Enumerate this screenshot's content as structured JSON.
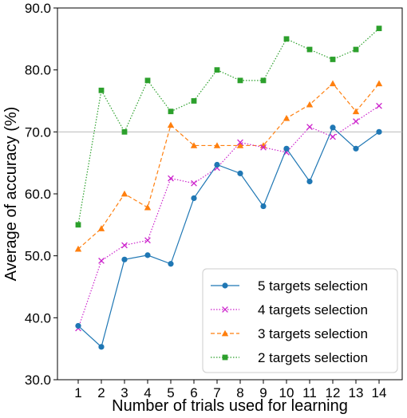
{
  "chart_data": {
    "type": "line",
    "title": "",
    "xlabel": "Number of trials used for learning",
    "ylabel": "Average of accuracy (%)",
    "x": [
      1,
      2,
      3,
      4,
      5,
      6,
      7,
      8,
      9,
      10,
      11,
      12,
      13,
      14
    ],
    "xtick_labels": [
      "1",
      "2",
      "3",
      "4",
      "5",
      "6",
      "7",
      "8",
      "9",
      "10",
      "11",
      "12",
      "13",
      "14"
    ],
    "ylim": [
      30,
      90
    ],
    "yticks": [
      30,
      40,
      50,
      60,
      70,
      80,
      90
    ],
    "ytick_labels": [
      "30.0",
      "40.0",
      "50.0",
      "60.0",
      "70.0",
      "80.0",
      "90.0"
    ],
    "grid": "horizontal line at 70.0 only",
    "reference_line": 70,
    "legend_placement": "lower-right",
    "series": [
      {
        "name": "5 targets selection",
        "color": "#1f77b4",
        "linestyle": "solid",
        "marker": "circle",
        "values": [
          38.7,
          35.3,
          49.4,
          50.1,
          48.7,
          59.3,
          64.7,
          63.3,
          58.0,
          67.3,
          62.0,
          70.7,
          67.3,
          70.0
        ]
      },
      {
        "name": "4 targets selection",
        "color": "#cc22cc",
        "linestyle": "dotted",
        "marker": "x",
        "values": [
          38.3,
          49.2,
          51.7,
          52.5,
          62.5,
          61.7,
          64.2,
          68.3,
          67.5,
          66.7,
          70.8,
          69.2,
          71.7,
          74.2
        ]
      },
      {
        "name": "3 targets selection",
        "color": "#ff7f0e",
        "linestyle": "dashed",
        "marker": "triangle",
        "values": [
          51.1,
          54.4,
          60.0,
          57.8,
          71.1,
          67.8,
          67.8,
          67.8,
          67.8,
          72.2,
          74.4,
          77.8,
          73.3,
          77.8
        ]
      },
      {
        "name": "2 targets selection",
        "color": "#2ca02c",
        "linestyle": "dotted",
        "marker": "square",
        "values": [
          55.0,
          76.7,
          70.0,
          78.3,
          73.3,
          75.0,
          80.0,
          78.3,
          78.3,
          85.0,
          83.3,
          81.7,
          83.3,
          86.7
        ]
      }
    ]
  }
}
